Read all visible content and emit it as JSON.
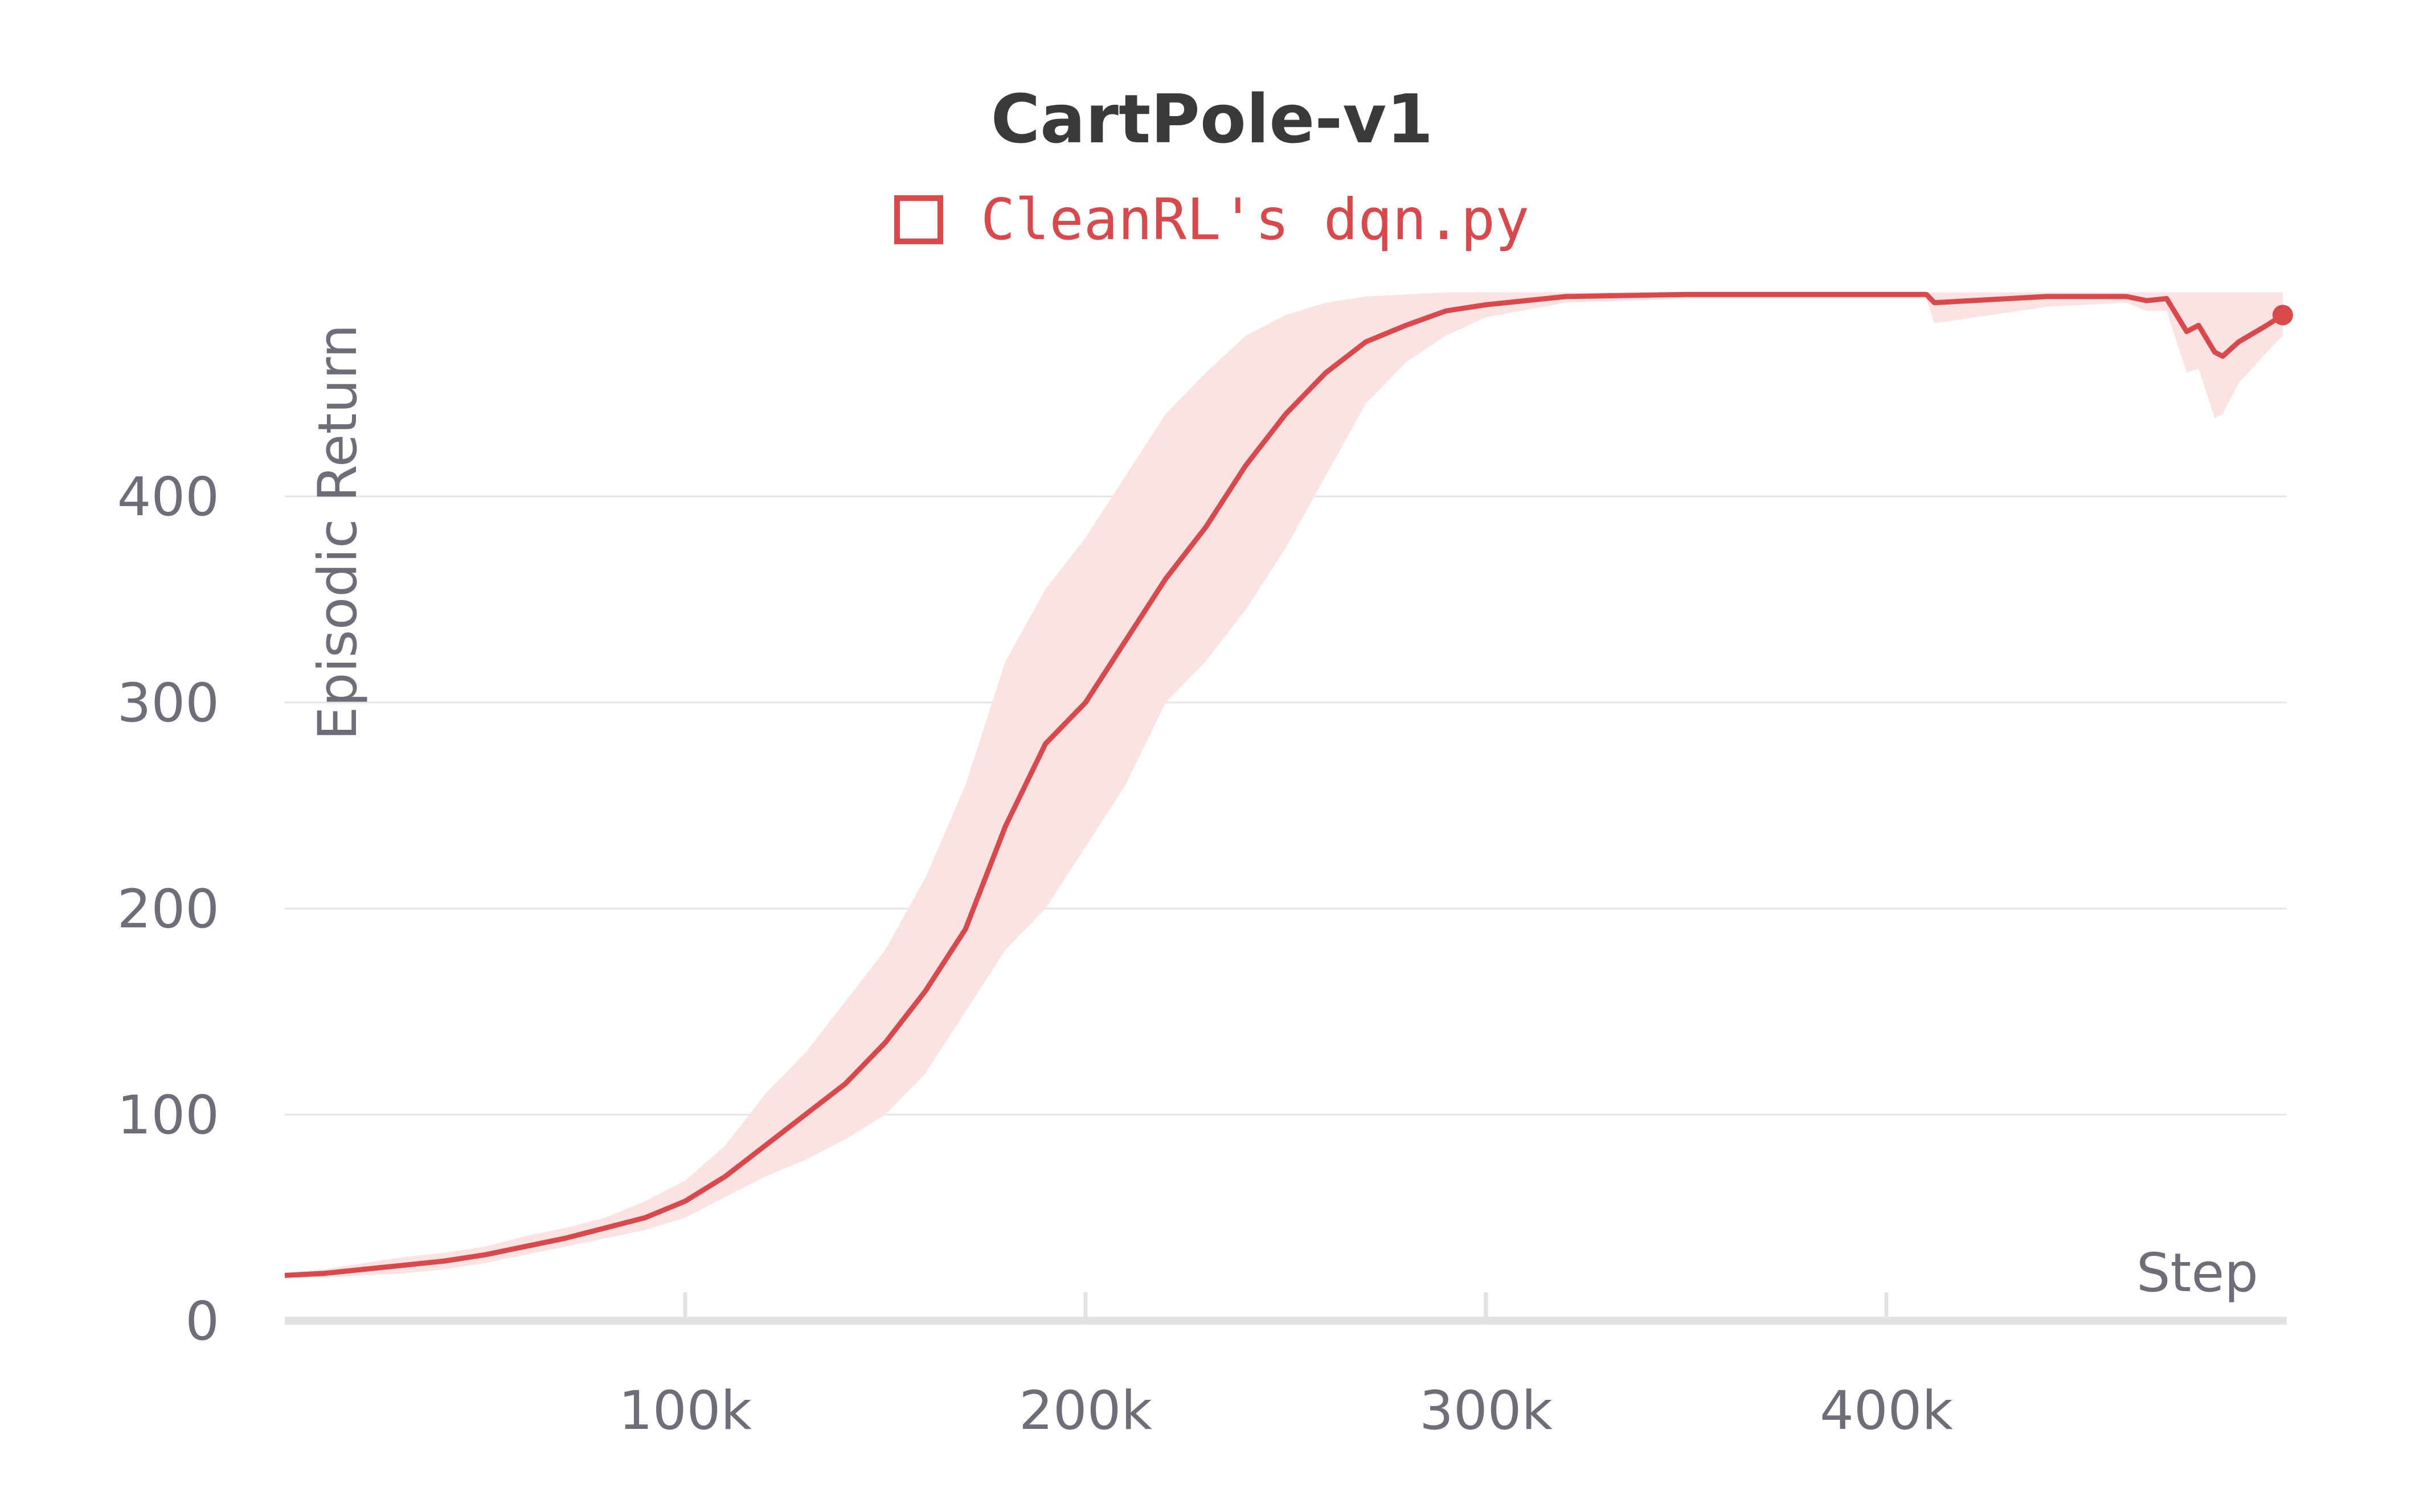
{
  "chart_data": {
    "type": "line",
    "title": "CartPole-v1",
    "xlabel": "Step",
    "ylabel": "Episodic Return",
    "xlim": [
      0,
      500000
    ],
    "ylim": [
      0,
      500
    ],
    "x_ticks": [
      100000,
      200000,
      300000,
      400000
    ],
    "x_tick_labels": [
      "100k",
      "200k",
      "300k",
      "400k"
    ],
    "y_ticks": [
      0,
      100,
      200,
      300,
      400
    ],
    "y_tick_labels": [
      "0",
      "100",
      "200",
      "300",
      "400"
    ],
    "grid": true,
    "legend_position": "top-center",
    "series": [
      {
        "name": "CleanRL's dqn.py",
        "color": "#d9494b",
        "band_color": "#fbe3e4",
        "x": [
          0,
          10000,
          20000,
          30000,
          40000,
          50000,
          60000,
          70000,
          80000,
          90000,
          100000,
          110000,
          120000,
          130000,
          140000,
          150000,
          160000,
          170000,
          180000,
          190000,
          200000,
          210000,
          220000,
          230000,
          240000,
          250000,
          260000,
          270000,
          280000,
          290000,
          300000,
          320000,
          350000,
          380000,
          410000,
          412000,
          440000,
          460000,
          465000,
          470000,
          475000,
          478000,
          482000,
          484000,
          488000,
          495000,
          499000
        ],
        "y": [
          22,
          23,
          25,
          27,
          29,
          32,
          36,
          40,
          45,
          50,
          58,
          70,
          85,
          100,
          115,
          135,
          160,
          190,
          240,
          280,
          300,
          330,
          360,
          385,
          415,
          440,
          460,
          475,
          483,
          490,
          493,
          497,
          498,
          498,
          498,
          494,
          497,
          497,
          495,
          496,
          480,
          483,
          470,
          468,
          475,
          483,
          488
        ],
        "upper": [
          23,
          25,
          28,
          31,
          33,
          36,
          41,
          45,
          50,
          58,
          68,
          85,
          110,
          130,
          155,
          180,
          215,
          260,
          320,
          355,
          380,
          410,
          440,
          460,
          478,
          488,
          494,
          497,
          498,
          499,
          499,
          499,
          499,
          499,
          499,
          499,
          499,
          499,
          499,
          499,
          499,
          499,
          499,
          499,
          499,
          499,
          499
        ],
        "lower": [
          21,
          21,
          22,
          23,
          25,
          28,
          32,
          36,
          40,
          44,
          50,
          60,
          70,
          78,
          88,
          100,
          120,
          150,
          180,
          200,
          230,
          260,
          300,
          320,
          345,
          375,
          410,
          445,
          465,
          478,
          487,
          494,
          496,
          496,
          496,
          484,
          492,
          494,
          490,
          490,
          460,
          462,
          438,
          440,
          455,
          470,
          478
        ]
      }
    ]
  }
}
